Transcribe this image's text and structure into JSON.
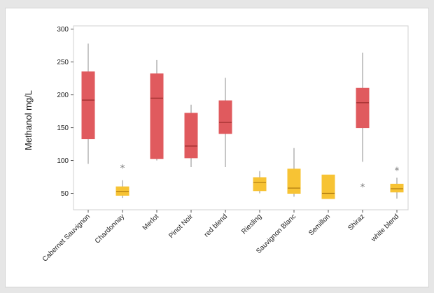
{
  "chart_data": {
    "type": "boxplot",
    "title": "",
    "xlabel": "",
    "ylabel": "Methanol mg/L",
    "ylim": [
      25,
      305
    ],
    "yticks": [
      50,
      100,
      150,
      200,
      250,
      300
    ],
    "grid": false,
    "legend": "none",
    "colors": {
      "red": "#e05a5e",
      "yellow": "#f7c334",
      "whisker": "#8c8c8c",
      "median": "#9a2a2a",
      "median_yellow": "#b07c10"
    },
    "categories": [
      "Cabernet Sauvignon",
      "Chardonnay",
      "Merlot",
      "Pinot Noir",
      "red blend",
      "Riesling",
      "Sauvignon Blanc",
      "Semillon",
      "Shiraz",
      "white blend"
    ],
    "boxes": [
      {
        "category": "Cabernet Sauvignon",
        "color": "red",
        "whisker_low": 95,
        "q1": 133,
        "median": 192,
        "q3": 235,
        "whisker_high": 278,
        "outliers": []
      },
      {
        "category": "Chardonnay",
        "color": "yellow",
        "whisker_low": 43,
        "q1": 47,
        "median": 53,
        "q3": 60,
        "whisker_high": 70,
        "outliers": [
          89
        ]
      },
      {
        "category": "Merlot",
        "color": "red",
        "whisker_low": 100,
        "q1": 103,
        "median": 195,
        "q3": 232,
        "whisker_high": 253,
        "outliers": []
      },
      {
        "category": "Pinot Noir",
        "color": "red",
        "whisker_low": 90,
        "q1": 104,
        "median": 122,
        "q3": 172,
        "whisker_high": 185,
        "outliers": []
      },
      {
        "category": "red blend",
        "color": "red",
        "whisker_low": 90,
        "q1": 141,
        "median": 158,
        "q3": 191,
        "whisker_high": 226,
        "outliers": []
      },
      {
        "category": "Riesling",
        "color": "yellow",
        "whisker_low": 50,
        "q1": 54,
        "median": 67,
        "q3": 74,
        "whisker_high": 84,
        "outliers": []
      },
      {
        "category": "Sauvignon Blanc",
        "color": "yellow",
        "whisker_low": 45,
        "q1": 50,
        "median": 58,
        "q3": 87,
        "whisker_high": 119,
        "outliers": []
      },
      {
        "category": "Semillon",
        "color": "yellow",
        "whisker_low": 42,
        "q1": 42,
        "median": 50,
        "q3": 78,
        "whisker_high": 78,
        "outliers": []
      },
      {
        "category": "Shiraz",
        "color": "red",
        "whisker_low": 98,
        "q1": 150,
        "median": 188,
        "q3": 210,
        "whisker_high": 264,
        "outliers": [
          60
        ]
      },
      {
        "category": "white blend",
        "color": "yellow",
        "whisker_low": 42,
        "q1": 52,
        "median": 57,
        "q3": 64,
        "whisker_high": 74,
        "outliers": [
          85
        ]
      }
    ]
  }
}
